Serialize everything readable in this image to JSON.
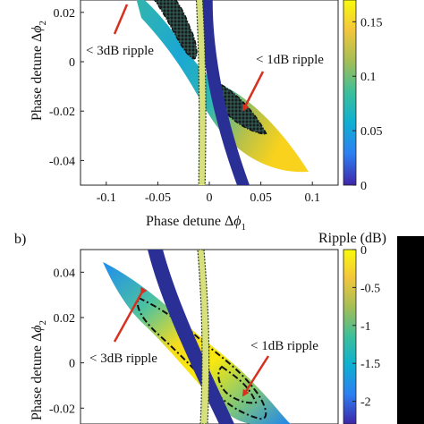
{
  "colors": {
    "navy": "#2a2f96",
    "arrow": "#d8301f",
    "dash": "#111111",
    "colormap": [
      "#3e26a8",
      "#2d7ff2",
      "#0fb0d1",
      "#3bbf9b",
      "#a4be56",
      "#f4c63b",
      "#f8fa0d"
    ]
  },
  "chart_data": [
    {
      "panel": "a",
      "type": "heatmap",
      "x_ticks": [
        "-0.1",
        "-0.05",
        "0",
        "0.05",
        "0.1"
      ],
      "x_tick_values": [
        -0.1,
        -0.05,
        0,
        0.05,
        0.1
      ],
      "y_ticks": [
        "0.02",
        "0",
        "-0.02",
        "-0.04"
      ],
      "y_tick_values": [
        0.02,
        0,
        -0.02,
        -0.04
      ],
      "xlim": [
        -0.125,
        0.125
      ],
      "ylim": [
        -0.05,
        0.025
      ],
      "xlabel_text": "Phase detune Δ",
      "xlabel_var": "ϕ",
      "xlabel_sub": "1",
      "ylabel_text": "Phase detune Δ",
      "ylabel_var": "ϕ",
      "ylabel_sub": "2",
      "colorbar_ticks": [
        "0.15",
        "0.1",
        "0.05",
        "0"
      ],
      "colorbar_values": [
        0.15,
        0.1,
        0.05,
        0
      ],
      "colorbar_range": [
        0,
        0.17
      ],
      "annotations": [
        "< 3dB ripple",
        "< 1dB ripple"
      ]
    },
    {
      "panel": "b",
      "label": "b)",
      "type": "heatmap",
      "y_ticks": [
        "0.04",
        "0.02",
        "0",
        "-0.02"
      ],
      "y_tick_values": [
        0.04,
        0.02,
        0,
        -0.02
      ],
      "ylim": [
        -0.027,
        0.05
      ],
      "xlim": [
        -0.125,
        0.125
      ],
      "ylabel_text": "Phase detune Δ",
      "ylabel_var": "ϕ",
      "ylabel_sub": "2",
      "colorbar_title": "Ripple (dB)",
      "colorbar_ticks": [
        "0",
        "-0.5",
        "-1",
        "-1.5",
        "-2"
      ],
      "colorbar_values": [
        0,
        -0.5,
        -1,
        -1.5,
        -2
      ],
      "colorbar_range": [
        -2.3,
        0
      ],
      "annotations": [
        "< 3dB ripple",
        "< 1dB ripple"
      ]
    }
  ]
}
